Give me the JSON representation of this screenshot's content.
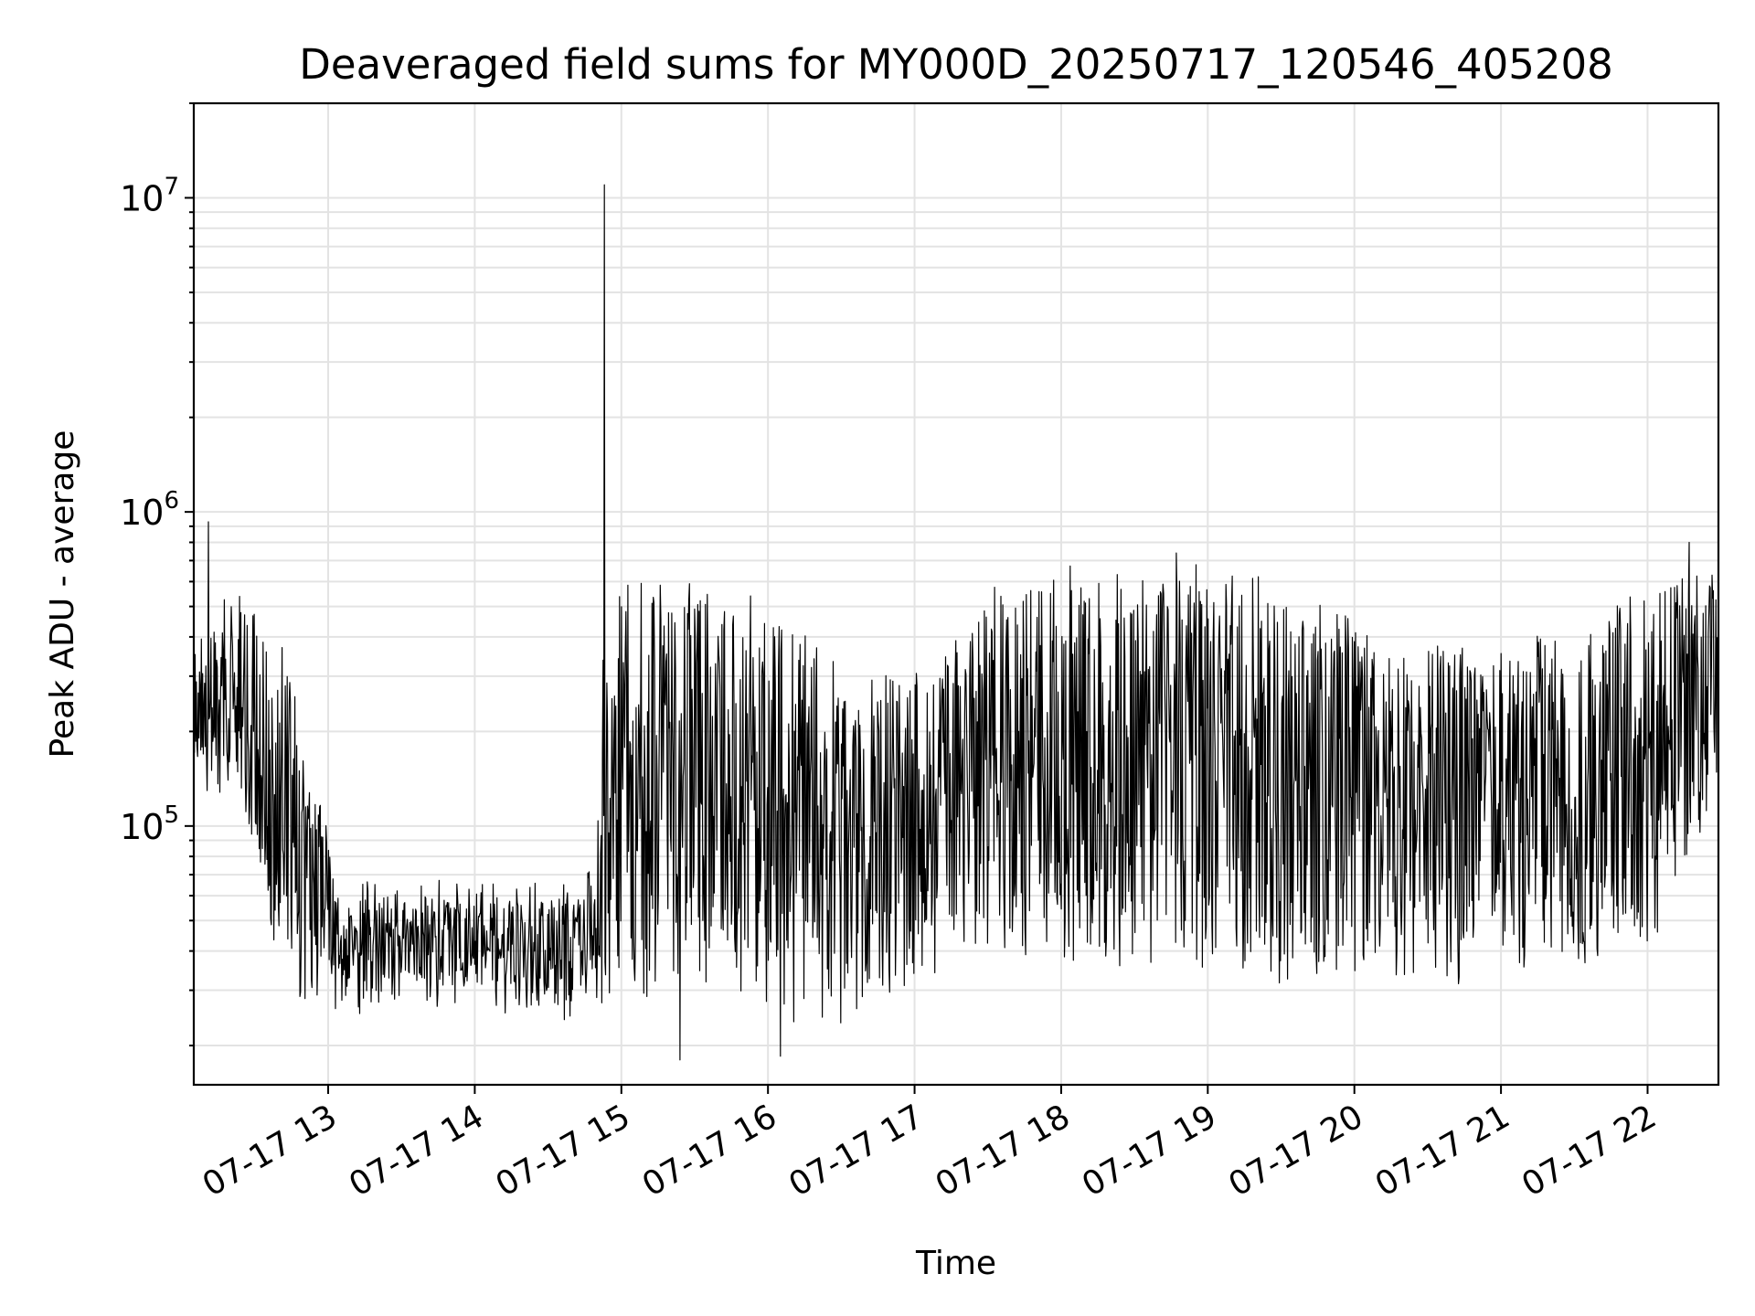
{
  "chart_data": {
    "type": "line",
    "title": "Deaveraged field sums for MY000D_20250717_120546_405208",
    "xlabel": "Time",
    "ylabel": "Peak ADU - average",
    "yscale": "log",
    "ylim": [
      15000,
      20000000
    ],
    "xlim": [
      "2025-07-17 12:05",
      "2025-07-17 22:29"
    ],
    "grid": true,
    "line_color": "#000000",
    "x_ticks": [
      {
        "value": "2025-07-17 13:00",
        "label": "07-17 13"
      },
      {
        "value": "2025-07-17 14:00",
        "label": "07-17 14"
      },
      {
        "value": "2025-07-17 15:00",
        "label": "07-17 15"
      },
      {
        "value": "2025-07-17 16:00",
        "label": "07-17 16"
      },
      {
        "value": "2025-07-17 17:00",
        "label": "07-17 17"
      },
      {
        "value": "2025-07-17 18:00",
        "label": "07-17 18"
      },
      {
        "value": "2025-07-17 19:00",
        "label": "07-17 19"
      },
      {
        "value": "2025-07-17 20:00",
        "label": "07-17 20"
      },
      {
        "value": "2025-07-17 21:00",
        "label": "07-17 21"
      },
      {
        "value": "2025-07-17 22:00",
        "label": "07-17 22"
      }
    ],
    "y_ticks": [
      {
        "value": 100000,
        "base": "10",
        "exp": "5"
      },
      {
        "value": 1000000,
        "base": "10",
        "exp": "6"
      },
      {
        "value": 10000000,
        "base": "10",
        "exp": "7"
      }
    ],
    "series": [
      {
        "x_start": "2025-07-17 12:05",
        "x_end": "2025-07-17 22:29",
        "envelope_breakpoints_hours": [
          0.0,
          0.33,
          0.66,
          1.0,
          1.5,
          2.0,
          2.5,
          2.75,
          2.8,
          3.3,
          3.7,
          4.1,
          4.5,
          5.0,
          5.4,
          5.8,
          6.3,
          6.8,
          7.3,
          7.8,
          8.3,
          8.8,
          9.3,
          10.0,
          10.4
        ],
        "typical_low": [
          150000,
          110000,
          30000,
          28000,
          30000,
          28000,
          27000,
          30000,
          30000,
          30000,
          28000,
          25000,
          25000,
          35000,
          45000,
          40000,
          40000,
          40000,
          35000,
          35000,
          35000,
          35000,
          38000,
          45000,
          150000
        ],
        "typical_high": [
          350000,
          600000,
          300000,
          60000,
          60000,
          60000,
          60000,
          80000,
          550000,
          550000,
          500000,
          450000,
          250000,
          300000,
          550000,
          600000,
          600000,
          600000,
          550000,
          450000,
          350000,
          350000,
          400000,
          600000,
          650000
        ],
        "points": [
          {
            "x": "2025-07-17 12:11",
            "y": 930000
          },
          {
            "x": "2025-07-17 14:53",
            "y": 11000000
          },
          {
            "x": "2025-07-17 15:24",
            "y": 18000
          },
          {
            "x": "2025-07-17 16:05",
            "y": 18500
          },
          {
            "x": "2025-07-17 18:47",
            "y": 740000
          },
          {
            "x": "2025-07-17 22:17",
            "y": 800000
          }
        ]
      }
    ]
  }
}
